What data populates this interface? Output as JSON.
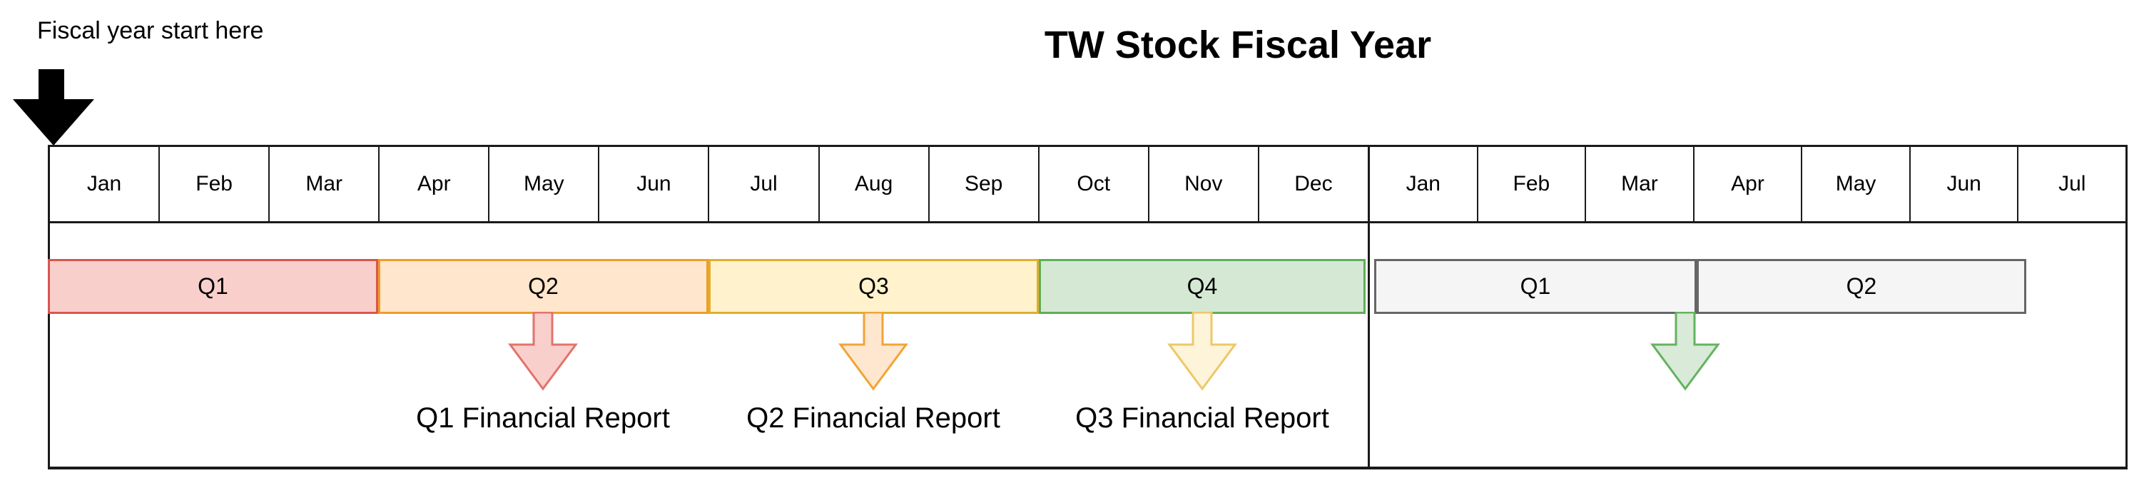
{
  "title": "TW Stock Fiscal Year",
  "annotation": {
    "text": "Fiscal year start here",
    "arrow_color": "#000000"
  },
  "timeline": {
    "year1_months": [
      "Jan",
      "Feb",
      "Mar",
      "Apr",
      "May",
      "Jun",
      "Jul",
      "Aug",
      "Sep",
      "Oct",
      "Nov",
      "Dec"
    ],
    "year2_months": [
      "Jan",
      "Feb",
      "Mar",
      "Apr",
      "May",
      "Jun",
      "Jul"
    ],
    "quarters": [
      {
        "label": "Q1",
        "fill": "#f9cfcc",
        "stroke": "#d9564f"
      },
      {
        "label": "Q2",
        "fill": "#ffe6cc",
        "stroke": "#ef9d27"
      },
      {
        "label": "Q3",
        "fill": "#fff2cc",
        "stroke": "#e0ae2e"
      },
      {
        "label": "Q4",
        "fill": "#d5e8d4",
        "stroke": "#5fae58"
      },
      {
        "label": "Q1",
        "fill": "#f5f5f5",
        "stroke": "#666666"
      },
      {
        "label": "Q2",
        "fill": "#f5f5f5",
        "stroke": "#666666"
      }
    ],
    "report_markers": [
      {
        "label": "Q1 Financial Report",
        "fill": "#f9cfcc",
        "stroke": "#e2736c"
      },
      {
        "label": "Q2 Financial Report",
        "fill": "#ffe7cf",
        "stroke": "#f1a437"
      },
      {
        "label": "Q3 Financial Report",
        "fill": "#fdf4d9",
        "stroke": "#edc868"
      },
      {
        "label": "",
        "fill": "#d9ead8",
        "stroke": "#63b35f"
      }
    ]
  }
}
